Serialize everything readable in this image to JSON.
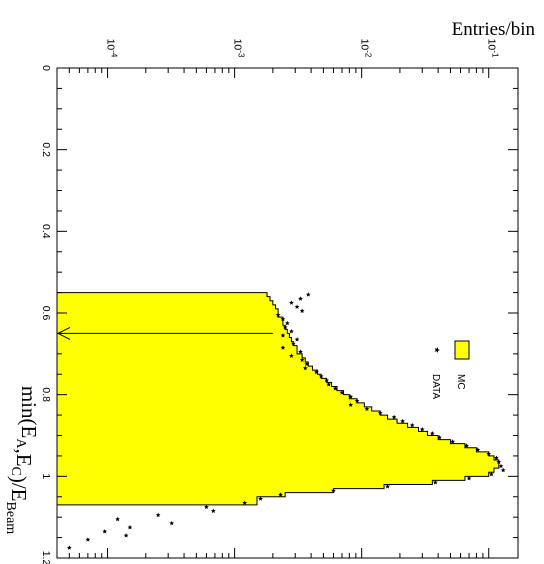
{
  "chart_data": {
    "type": "area",
    "rotated": "graph drawn rotated 90 degrees clockwise",
    "title": "",
    "xlabel": "min(E_A,E_C)/E_Beam",
    "ylabel": "Entries/bin",
    "xlim": [
      0,
      1.2
    ],
    "ylim": [
      4e-05,
      0.17
    ],
    "yscale": "log",
    "x_ticks": [
      "0",
      "0.2",
      "0.4",
      "0.6",
      "0.8",
      "1",
      "1.2"
    ],
    "y_ticks": [
      {
        "base": "10",
        "exp": "-4",
        "value": 0.0001
      },
      {
        "base": "10",
        "exp": "-3",
        "value": 0.001
      },
      {
        "base": "10",
        "exp": "-2",
        "value": 0.01
      },
      {
        "base": "10",
        "exp": "-1",
        "value": 0.1
      }
    ],
    "series": [
      {
        "name": "MC",
        "style": "filled histogram",
        "color": "#ffff00",
        "x": [
          0.55,
          0.56,
          0.57,
          0.58,
          0.59,
          0.6,
          0.61,
          0.62,
          0.63,
          0.64,
          0.65,
          0.66,
          0.67,
          0.68,
          0.69,
          0.7,
          0.71,
          0.72,
          0.73,
          0.74,
          0.75,
          0.76,
          0.77,
          0.78,
          0.79,
          0.8,
          0.81,
          0.82,
          0.83,
          0.84,
          0.85,
          0.86,
          0.87,
          0.88,
          0.89,
          0.9,
          0.91,
          0.92,
          0.93,
          0.94,
          0.95,
          0.96,
          0.97,
          0.98,
          0.99,
          1.0,
          1.01,
          1.02,
          1.03,
          1.04,
          1.05,
          1.06,
          1.07,
          1.08
        ],
        "y": [
          0.0018,
          0.0019,
          0.002,
          0.0021,
          0.0022,
          0.0022,
          0.0024,
          0.0024,
          0.0025,
          0.0026,
          0.0027,
          0.0028,
          0.0029,
          0.0031,
          0.0031,
          0.0034,
          0.0036,
          0.0038,
          0.0041,
          0.0045,
          0.0048,
          0.0053,
          0.0058,
          0.0064,
          0.0072,
          0.008,
          0.0092,
          0.0105,
          0.012,
          0.014,
          0.016,
          0.019,
          0.023,
          0.028,
          0.033,
          0.04,
          0.05,
          0.065,
          0.08,
          0.1,
          0.11,
          0.12,
          0.12,
          0.11,
          0.1,
          0.065,
          0.036,
          0.015,
          0.006,
          0.0025,
          0.0015,
          0.0015,
          4e-05,
          4e-05
        ]
      },
      {
        "name": "DATA",
        "style": "star markers",
        "color": "#000000",
        "x": [
          0.55,
          0.56,
          0.57,
          0.58,
          0.59,
          0.6,
          0.61,
          0.62,
          0.63,
          0.64,
          0.65,
          0.66,
          0.67,
          0.68,
          0.69,
          0.7,
          0.71,
          0.72,
          0.73,
          0.74,
          0.75,
          0.76,
          0.77,
          0.78,
          0.79,
          0.8,
          0.81,
          0.82,
          0.83,
          0.84,
          0.85,
          0.86,
          0.87,
          0.88,
          0.89,
          0.9,
          0.91,
          0.92,
          0.93,
          0.94,
          0.95,
          0.96,
          0.97,
          0.98,
          0.99,
          1.0,
          1.01,
          1.02,
          1.03,
          1.04,
          1.05,
          1.06,
          1.07,
          1.08,
          1.09,
          1.1,
          1.11,
          1.12,
          1.13,
          1.14,
          1.15,
          1.17
        ],
        "y": [
          0.0038,
          0.0033,
          0.0028,
          0.0031,
          0.0034,
          0.0022,
          0.0024,
          0.0026,
          0.0025,
          0.0028,
          0.0024,
          0.0031,
          0.0029,
          0.0024,
          0.0033,
          0.0028,
          0.0034,
          0.0037,
          0.0036,
          0.0044,
          0.0048,
          0.0053,
          0.0055,
          0.0062,
          0.007,
          0.0082,
          0.0092,
          0.0082,
          0.011,
          0.014,
          0.018,
          0.021,
          0.025,
          0.03,
          0.036,
          0.041,
          0.052,
          0.067,
          0.082,
          0.1,
          0.115,
          0.12,
          0.125,
          0.13,
          0.105,
          0.07,
          0.038,
          0.016,
          0.006,
          0.0023,
          0.0016,
          0.0012,
          0.0006,
          0.00068,
          0.00025,
          0.00012,
          0.00032,
          0.00015,
          9.5e-05,
          0.00014,
          7e-05,
          5e-05
        ]
      }
    ],
    "annotations": [
      {
        "type": "arrow",
        "x": 0.65,
        "y_tail": 0.002,
        "direction": "toward low y"
      }
    ],
    "legend": {
      "position": "right of plot, mid-height",
      "entries": [
        "MC",
        "DATA"
      ]
    },
    "grid": false
  }
}
